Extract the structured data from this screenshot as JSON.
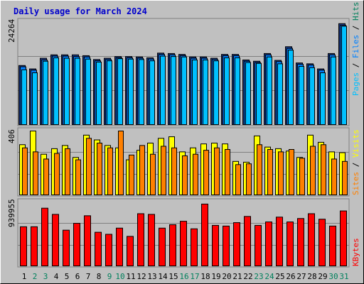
{
  "title": "Daily usage for March 2024",
  "colors": {
    "title": "#0000cc",
    "background": "#c0c0c0",
    "hits": "#00805c",
    "files": "#0080ff",
    "pages": "#00c0ff",
    "visits": "#ffff00",
    "sites": "#ff8000",
    "kbytes": "#ff0000",
    "day_normal": "#000000",
    "day_weekend": "#00805c"
  },
  "chart_data": [
    {
      "type": "bar",
      "panel": "requests",
      "ymax_label": "24264",
      "legend": [
        "Pages",
        "Files",
        "Hits"
      ],
      "categories": [
        "1",
        "2",
        "3",
        "4",
        "5",
        "6",
        "7",
        "8",
        "9",
        "10",
        "11",
        "12",
        "13",
        "14",
        "15",
        "16",
        "17",
        "18",
        "19",
        "20",
        "21",
        "22",
        "23",
        "24",
        "25",
        "26",
        "27",
        "28",
        "29",
        "30",
        "31"
      ],
      "ylim": [
        0,
        24264
      ],
      "series": [
        {
          "name": "Hits",
          "values": [
            14000,
            13200,
            15700,
            16500,
            16500,
            16500,
            16300,
            15400,
            15700,
            16100,
            16100,
            16000,
            15800,
            16900,
            16800,
            16600,
            16000,
            16000,
            15700,
            16600,
            16600,
            15300,
            15000,
            16800,
            15200,
            18400,
            14600,
            14400,
            13200,
            16800,
            23800
          ]
        },
        {
          "name": "Files",
          "values": [
            13700,
            12900,
            15300,
            16200,
            16200,
            16100,
            16000,
            15100,
            15400,
            15800,
            15800,
            15700,
            15500,
            16600,
            16500,
            16300,
            15700,
            15700,
            15400,
            16300,
            16300,
            15000,
            14700,
            16500,
            14900,
            18000,
            14300,
            14100,
            12900,
            16500,
            23400
          ]
        },
        {
          "name": "Pages",
          "values": [
            13000,
            12300,
            15000,
            15800,
            15700,
            15700,
            15500,
            14800,
            15100,
            15600,
            15500,
            15400,
            15100,
            16200,
            16100,
            16000,
            15300,
            15300,
            15100,
            15800,
            15800,
            14700,
            14500,
            16000,
            14400,
            17600,
            13800,
            13500,
            12300,
            16000,
            23200
          ]
        }
      ]
    },
    {
      "type": "bar",
      "panel": "visitors",
      "ymax_label": "406",
      "legend": [
        "Sites",
        "Visits"
      ],
      "categories": [
        "1",
        "2",
        "3",
        "4",
        "5",
        "6",
        "7",
        "8",
        "9",
        "10",
        "11",
        "12",
        "13",
        "14",
        "15",
        "16",
        "17",
        "18",
        "19",
        "20",
        "21",
        "22",
        "23",
        "24",
        "25",
        "26",
        "27",
        "28",
        "29",
        "30",
        "31"
      ],
      "ylim": [
        0,
        406
      ],
      "series": [
        {
          "name": "Visits",
          "values": [
            320,
            406,
            260,
            295,
            315,
            240,
            380,
            350,
            315,
            300,
            225,
            285,
            330,
            360,
            370,
            275,
            300,
            325,
            330,
            325,
            215,
            210,
            375,
            305,
            295,
            280,
            240,
            380,
            335,
            275,
            270
          ]
        },
        {
          "name": "Sites",
          "values": [
            300,
            275,
            230,
            265,
            295,
            225,
            360,
            330,
            300,
            406,
            255,
            315,
            260,
            310,
            300,
            250,
            260,
            285,
            300,
            290,
            195,
            200,
            320,
            290,
            275,
            290,
            235,
            310,
            320,
            230,
            215
          ]
        }
      ]
    },
    {
      "type": "bar",
      "panel": "traffic",
      "ymax_label": "939955",
      "legend": [
        "KBytes"
      ],
      "categories": [
        "1",
        "2",
        "3",
        "4",
        "5",
        "6",
        "7",
        "8",
        "9",
        "10",
        "11",
        "12",
        "13",
        "14",
        "15",
        "16",
        "17",
        "18",
        "19",
        "20",
        "21",
        "22",
        "23",
        "24",
        "25",
        "26",
        "27",
        "28",
        "29",
        "30",
        "31"
      ],
      "ylim": [
        0,
        939955
      ],
      "series": [
        {
          "name": "KBytes",
          "values": [
            580000,
            580000,
            850000,
            760000,
            530000,
            630000,
            740000,
            500000,
            470000,
            560000,
            440000,
            770000,
            760000,
            560000,
            610000,
            660000,
            550000,
            910000,
            600000,
            590000,
            640000,
            730000,
            600000,
            650000,
            720000,
            650000,
            700000,
            770000,
            690000,
            590000,
            810000
          ]
        }
      ]
    }
  ],
  "days": [
    {
      "label": "1",
      "weekend": false
    },
    {
      "label": "2",
      "weekend": true
    },
    {
      "label": "3",
      "weekend": true
    },
    {
      "label": "4",
      "weekend": false
    },
    {
      "label": "5",
      "weekend": false
    },
    {
      "label": "6",
      "weekend": false
    },
    {
      "label": "7",
      "weekend": false
    },
    {
      "label": "8",
      "weekend": false
    },
    {
      "label": "9",
      "weekend": true
    },
    {
      "label": "10",
      "weekend": true
    },
    {
      "label": "11",
      "weekend": false
    },
    {
      "label": "12",
      "weekend": false
    },
    {
      "label": "13",
      "weekend": false
    },
    {
      "label": "14",
      "weekend": false
    },
    {
      "label": "15",
      "weekend": false
    },
    {
      "label": "16",
      "weekend": true
    },
    {
      "label": "17",
      "weekend": true
    },
    {
      "label": "18",
      "weekend": false
    },
    {
      "label": "19",
      "weekend": false
    },
    {
      "label": "20",
      "weekend": false
    },
    {
      "label": "21",
      "weekend": false
    },
    {
      "label": "22",
      "weekend": false
    },
    {
      "label": "23",
      "weekend": true
    },
    {
      "label": "24",
      "weekend": true
    },
    {
      "label": "25",
      "weekend": false
    },
    {
      "label": "26",
      "weekend": false
    },
    {
      "label": "27",
      "weekend": false
    },
    {
      "label": "28",
      "weekend": false
    },
    {
      "label": "29",
      "weekend": false
    },
    {
      "label": "30",
      "weekend": true
    },
    {
      "label": "31",
      "weekend": true
    }
  ]
}
